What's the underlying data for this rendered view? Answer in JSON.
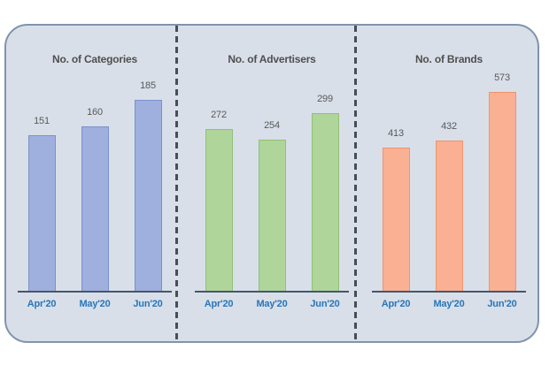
{
  "card": {
    "background": "#d9dfe9",
    "border_color": "#8094aa",
    "separator_color": "#434e5a"
  },
  "chart_data": [
    {
      "type": "bar",
      "title": "No. of Categories",
      "categories": [
        "Apr'20",
        "May'20",
        "Jun'20"
      ],
      "values": [
        151,
        160,
        185
      ],
      "ylim": [
        0,
        218
      ],
      "xlabel": "",
      "ylabel": "",
      "grid": false,
      "legend": false,
      "bar_fill": "#9fb0de",
      "bar_border": "#7b90cc",
      "title_color": "#4f4f4f",
      "value_label_color": "#595959",
      "xlabel_color": "#2776b9"
    },
    {
      "type": "bar",
      "title": "No. of Advertisers",
      "categories": [
        "Apr'20",
        "May'20",
        "Jun'20"
      ],
      "values": [
        272,
        254,
        299
      ],
      "ylim": [
        0,
        378
      ],
      "xlabel": "",
      "ylabel": "",
      "grid": false,
      "legend": false,
      "bar_fill": "#afd59b",
      "bar_border": "#8fc177",
      "title_color": "#4f4f4f",
      "value_label_color": "#595959",
      "xlabel_color": "#2776b9"
    },
    {
      "type": "bar",
      "title": "No. of Brands",
      "categories": [
        "Apr'20",
        "May'20",
        "Jun'20"
      ],
      "values": [
        413,
        432,
        573
      ],
      "ylim": [
        0,
        647
      ],
      "xlabel": "",
      "ylabel": "",
      "grid": false,
      "legend": false,
      "bar_fill": "#fab093",
      "bar_border": "#f0946c",
      "title_color": "#4f4f4f",
      "value_label_color": "#595959",
      "xlabel_color": "#2776b9"
    }
  ]
}
